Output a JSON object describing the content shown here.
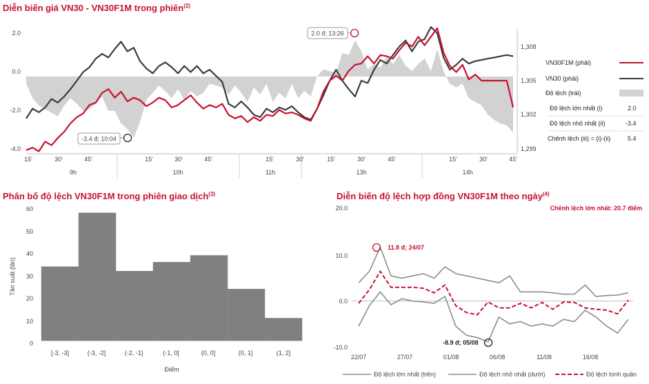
{
  "colors": {
    "vn30f1m": "#c8102e",
    "vn30": "#3a3a3a",
    "spread": "#d2d2d2",
    "bar": "#808080",
    "mean": "#c8102e",
    "band": "#8c8c8c",
    "title": "#c8102e"
  },
  "chart_data": [
    {
      "type": "line",
      "title": "Diễn biến giá VN30 - VN30F1M trong phiên",
      "title_sup": "(2)",
      "y_left_ticks": [
        "2.0",
        "0.0",
        "-2.0",
        "-4.0"
      ],
      "y_left_range": [
        -4,
        2.4
      ],
      "y_right_ticks": [
        "1,308",
        "1,305",
        "1,302",
        "1,299"
      ],
      "y_right_range": [
        1299,
        1308.5
      ],
      "x_minor_labels": [
        "15'",
        "30'",
        "45'",
        "15'",
        "30'",
        "45'",
        "15'",
        "30'",
        "15'",
        "30'",
        "45'",
        "15'",
        "30'",
        "45'"
      ],
      "x_hour_labels": [
        "9h",
        "10h",
        "11h",
        "13h",
        "14h"
      ],
      "series": [
        {
          "name": "VN30F1M (phải)",
          "values": [
            1298.9,
            1299.1,
            1298.8,
            1299.6,
            1299.3,
            1299.9,
            1300.4,
            1301.1,
            1301.6,
            1301.9,
            1302.6,
            1302.8,
            1303.6,
            1303.9,
            1303.2,
            1303.7,
            1302.9,
            1303.2,
            1303.0,
            1302.5,
            1302.8,
            1303.2,
            1303.0,
            1302.4,
            1302.6,
            1303.0,
            1303.4,
            1302.8,
            1302.3,
            1302.6,
            1302.4,
            1302.7,
            1301.8,
            1301.5,
            1301.7,
            1301.2,
            1301.6,
            1301.3,
            1301.8,
            1301.7,
            1302.2,
            1301.9,
            1302.0,
            1301.8,
            1301.5,
            1301.3,
            1302.3,
            1303.7,
            1304.6,
            1305.0,
            1304.6,
            1305.4,
            1305.9,
            1306.0,
            1306.6,
            1306.0,
            1306.7,
            1306.6,
            1306.4,
            1307.1,
            1307.7,
            1307.4,
            1308.2,
            1307.5,
            1308.2,
            1308.9,
            1306.9,
            1305.8,
            1305.3,
            1305.9,
            1304.7,
            1305.1,
            1304.6,
            1304.6,
            1304.6,
            1304.6,
            1304.6,
            1302.4
          ]
        },
        {
          "name": "VN30 (phải)",
          "values": [
            1301.5,
            1302.3,
            1302.0,
            1302.4,
            1303.1,
            1302.8,
            1303.3,
            1303.9,
            1304.6,
            1305.3,
            1305.7,
            1306.4,
            1306.8,
            1306.5,
            1307.2,
            1307.8,
            1307.0,
            1307.3,
            1306.2,
            1305.6,
            1305.2,
            1305.8,
            1306.1,
            1305.7,
            1305.2,
            1305.8,
            1305.3,
            1305.8,
            1305.2,
            1305.5,
            1305.0,
            1304.5,
            1302.7,
            1302.4,
            1302.9,
            1302.4,
            1301.8,
            1301.6,
            1302.3,
            1302.0,
            1302.4,
            1302.2,
            1302.5,
            1302.0,
            1301.6,
            1301.4,
            1302.3,
            1303.4,
            1304.6,
            1305.5,
            1304.6,
            1303.9,
            1303.3,
            1304.6,
            1304.4,
            1305.5,
            1306.3,
            1306.0,
            1306.7,
            1307.4,
            1307.9,
            1307.0,
            1307.8,
            1308.0,
            1309.0,
            1308.5,
            1306.5,
            1305.5,
            1305.9,
            1306.4,
            1306.0,
            1306.2,
            1306.3,
            1306.4,
            1306.5,
            1306.6,
            1306.7,
            1306.6
          ]
        },
        {
          "name": "Độ lệch (trái)",
          "values": [
            -0.4,
            -1.2,
            -1.6,
            -1.8,
            -2.0,
            -2.2,
            -1.6,
            -1.2,
            -1.5,
            -1.9,
            -1.8,
            -1.5,
            -1.1,
            -1.9,
            -1.9,
            -2.6,
            -2.9,
            -3.4,
            -2.5,
            -1.3,
            -0.9,
            -0.5,
            -0.8,
            -1.2,
            -0.7,
            -1.3,
            -0.8,
            -1.1,
            -0.9,
            -0.4,
            -0.5,
            -0.6,
            -1.0,
            -0.5,
            -0.9,
            -1.4,
            -0.6,
            -1.0,
            -0.4,
            -1.4,
            -0.9,
            -1.2,
            -0.4,
            -1.2,
            -0.8,
            -1.1,
            0.0,
            0.4,
            0.3,
            0.2,
            1.3,
            1.2,
            2.0,
            1.4,
            0.4,
            0.7,
            0.5,
            1.1,
            0.7,
            1.2,
            0.6,
            0.3,
            0.7,
            1.0,
            0.3,
            1.5,
            0.3,
            -0.4,
            -0.6,
            -0.4,
            -1.2,
            -1.4,
            -1.6,
            -2.1,
            -2.4,
            -2.6,
            -2.7,
            -3.1
          ]
        }
      ],
      "annotations": [
        "2.0 đ; 13:26",
        "-3.4 đ; 10:04"
      ],
      "stats": [
        {
          "label": "Độ lệch lớn nhất (i)",
          "value": "2.0"
        },
        {
          "label": "Độ lệch nhỏ nhất (ii)",
          "value": "-3.4"
        },
        {
          "label": "Chênh lệch (iii) = (i)-(ii)",
          "value": "5.4"
        }
      ]
    },
    {
      "type": "bar",
      "title": "Phân bố độ lệch VN30F1M trong phiên giao dịch",
      "title_sup": "(3)",
      "categories": [
        "[-3, -3]",
        "(-3, -2]",
        "(-2, -1]",
        "(-1, 0]",
        "(0, 0]",
        "(0, 1]",
        "(1, 2]"
      ],
      "values": [
        33,
        57,
        31,
        35,
        38,
        23,
        10
      ],
      "ylabel": "Tần suất (lần)",
      "xlabel": "Điểm",
      "ylim": [
        0,
        60
      ],
      "y_ticks": [
        "60",
        "50",
        "40",
        "30",
        "20",
        "10",
        "0"
      ]
    },
    {
      "type": "line",
      "title": "Diễn biến độ lệch hợp đồng VN30F1M theo ngày",
      "title_sup": "(4)",
      "subtitle": "Chênh lệch lớn nhất: 20.7 điểm",
      "ylim": [
        -10,
        20
      ],
      "y_ticks": [
        "20.0",
        "10.0",
        "0.0",
        "-10.0"
      ],
      "x_tick_labels": [
        "22/07",
        "27/07",
        "01/08",
        "06/08",
        "11/08",
        "16/08"
      ],
      "series": [
        {
          "name": "Độ lệch lớn nhất (trên)",
          "values": [
            4.0,
            6.5,
            11.8,
            5.5,
            5.0,
            5.5,
            6.0,
            5.0,
            7.5,
            6.0,
            5.5,
            5.0,
            4.5,
            4.0,
            5.5,
            2.0,
            2.0,
            2.0,
            1.8,
            1.5,
            1.5,
            3.5,
            1.0,
            1.2,
            1.3,
            1.8
          ]
        },
        {
          "name": "Độ lệch nhỏ nhất (dưới)",
          "values": [
            -5.5,
            -1.0,
            2.0,
            -0.8,
            0.5,
            0.0,
            -0.2,
            -0.5,
            1.0,
            -5.5,
            -7.5,
            -8.0,
            -8.9,
            -3.5,
            -5.0,
            -4.5,
            -5.5,
            -5.0,
            -5.5,
            -4.0,
            -4.5,
            -2.0,
            -3.5,
            -5.5,
            -7.0,
            -4.0
          ]
        },
        {
          "name": "Độ lệch bình quân",
          "values": [
            -0.5,
            2.5,
            6.5,
            3.0,
            3.0,
            3.0,
            2.8,
            1.8,
            3.5,
            -1.0,
            -2.5,
            -3.0,
            -0.2,
            -1.5,
            -1.5,
            -0.5,
            -1.5,
            -0.3,
            -1.8,
            -0.2,
            -0.3,
            -1.5,
            -1.8,
            -2.0,
            -2.8,
            0.2
          ]
        }
      ],
      "annotations": [
        "11.8 đ; 24/07",
        "-8.9 đ; 05/08"
      ]
    }
  ]
}
